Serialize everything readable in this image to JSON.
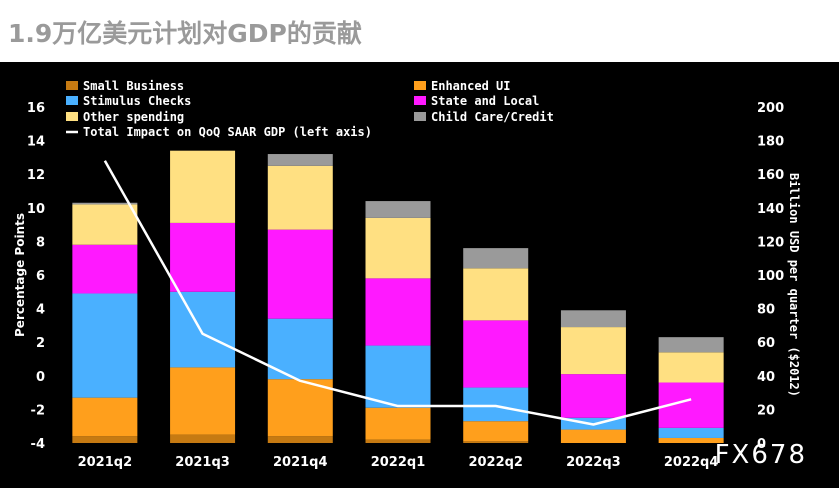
{
  "chart_data": {
    "type": "bar",
    "title": "1.9万亿美元计划对GDP的贡献",
    "categories": [
      "2021q2",
      "2021q3",
      "2021q4",
      "2022q1",
      "2022q2",
      "2022q3",
      "2022q4"
    ],
    "ylabel": "Percentage Points",
    "y2label": "Billion USD per quarter ($2012)",
    "ylim": [
      -4,
      16
    ],
    "y2lim": [
      0,
      200
    ],
    "yticks": [
      "-4",
      "-2",
      "0",
      "2",
      "4",
      "6",
      "8",
      "10",
      "12",
      "14",
      "16"
    ],
    "y2ticks": [
      "0",
      "20",
      "40",
      "60",
      "80",
      "100",
      "120",
      "140",
      "160",
      "180",
      "200"
    ],
    "stacks": [
      [
        {
          "series": "Small Business",
          "from": -4.0,
          "to": -3.6
        },
        {
          "series": "Enhanced UI",
          "from": -3.6,
          "to": -1.3
        },
        {
          "series": "Stimulus Checks",
          "from": -1.3,
          "to": 4.9
        },
        {
          "series": "State and Local",
          "from": 4.9,
          "to": 7.8
        },
        {
          "series": "Other spending",
          "from": 7.8,
          "to": 10.2
        },
        {
          "series": "Child Care/Credit",
          "from": 10.2,
          "to": 10.3
        }
      ],
      [
        {
          "series": "Small Business",
          "from": -4.0,
          "to": -3.5
        },
        {
          "series": "Enhanced UI",
          "from": -3.5,
          "to": 0.5
        },
        {
          "series": "Stimulus Checks",
          "from": 0.5,
          "to": 5.0
        },
        {
          "series": "State and Local",
          "from": 5.0,
          "to": 9.1
        },
        {
          "series": "Other spending",
          "from": 9.1,
          "to": 13.4
        }
      ],
      [
        {
          "series": "Small Business",
          "from": -4.0,
          "to": -3.6
        },
        {
          "series": "Enhanced UI",
          "from": -3.6,
          "to": -0.2
        },
        {
          "series": "Stimulus Checks",
          "from": -0.2,
          "to": 3.4
        },
        {
          "series": "State and Local",
          "from": 3.4,
          "to": 8.7
        },
        {
          "series": "Other spending",
          "from": 8.7,
          "to": 12.5
        },
        {
          "series": "Child Care/Credit",
          "from": 12.5,
          "to": 13.2
        }
      ],
      [
        {
          "series": "Small Business",
          "from": -4.0,
          "to": -3.8
        },
        {
          "series": "Enhanced UI",
          "from": -3.8,
          "to": -1.9
        },
        {
          "series": "Stimulus Checks",
          "from": -1.9,
          "to": 1.8
        },
        {
          "series": "State and Local",
          "from": 1.8,
          "to": 5.8
        },
        {
          "series": "Other spending",
          "from": 5.8,
          "to": 9.4
        },
        {
          "series": "Child Care/Credit",
          "from": 9.4,
          "to": 10.4
        }
      ],
      [
        {
          "series": "Small Business",
          "from": -4.0,
          "to": -3.9
        },
        {
          "series": "Enhanced UI",
          "from": -3.9,
          "to": -2.7
        },
        {
          "series": "Stimulus Checks",
          "from": -2.7,
          "to": -0.7
        },
        {
          "series": "State and Local",
          "from": -0.7,
          "to": 3.3
        },
        {
          "series": "Other spending",
          "from": 3.3,
          "to": 6.4
        },
        {
          "series": "Child Care/Credit",
          "from": 6.4,
          "to": 7.6
        }
      ],
      [
        {
          "series": "Enhanced UI",
          "from": -4.0,
          "to": -3.2
        },
        {
          "series": "Stimulus Checks",
          "from": -3.2,
          "to": -2.5
        },
        {
          "series": "State and Local",
          "from": -2.5,
          "to": 0.1
        },
        {
          "series": "Other spending",
          "from": 0.1,
          "to": 2.9
        },
        {
          "series": "Child Care/Credit",
          "from": 2.9,
          "to": 3.9
        }
      ],
      [
        {
          "series": "Enhanced UI",
          "from": -4.0,
          "to": -3.7
        },
        {
          "series": "Stimulus Checks",
          "from": -3.7,
          "to": -3.1
        },
        {
          "series": "State and Local",
          "from": -3.1,
          "to": -0.4
        },
        {
          "series": "Other spending",
          "from": -0.4,
          "to": 1.4
        },
        {
          "series": "Child Care/Credit",
          "from": 1.4,
          "to": 2.3
        }
      ]
    ],
    "line": {
      "name": "Total Impact on QoQ SAAR GDP (left axis)",
      "values": [
        12.8,
        2.5,
        -0.3,
        -1.8,
        -1.8,
        -2.9,
        -1.4
      ]
    },
    "legend": [
      {
        "label": "Small Business",
        "color": "#c67a12"
      },
      {
        "label": "Enhanced UI",
        "color": "#ff9f1c"
      },
      {
        "label": "Stimulus Checks",
        "color": "#4ab0ff"
      },
      {
        "label": "State and Local",
        "color": "#ff19ff"
      },
      {
        "label": "Other spending",
        "color": "#ffe082"
      },
      {
        "label": "Child Care/Credit",
        "color": "#9a9a9a"
      },
      {
        "label": "Total Impact on QoQ SAAR GDP (left axis)",
        "color": "#ffffff"
      }
    ]
  },
  "watermark": "FX678"
}
